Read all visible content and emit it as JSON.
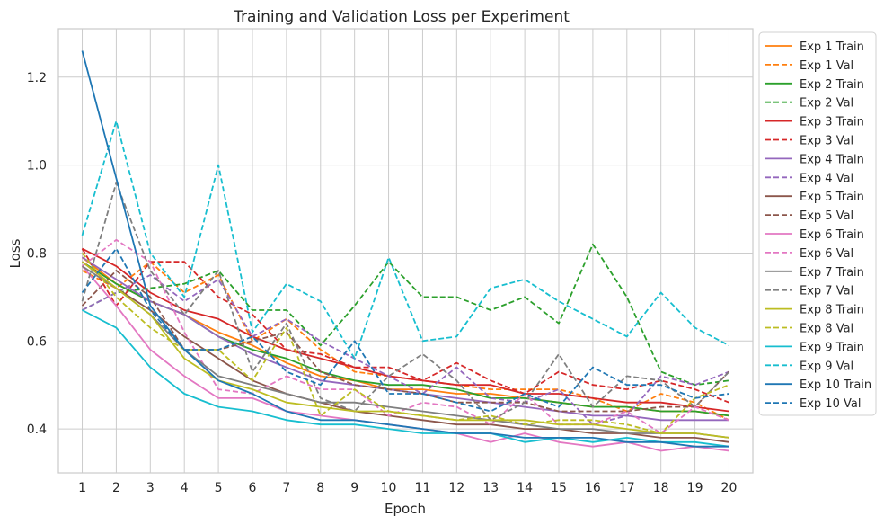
{
  "chart_data": {
    "type": "line",
    "title": "Training and Validation Loss per Experiment",
    "xlabel": "Epoch",
    "ylabel": "Loss",
    "x": [
      1,
      2,
      3,
      4,
      5,
      6,
      7,
      8,
      9,
      10,
      11,
      12,
      13,
      14,
      15,
      16,
      17,
      18,
      19,
      20
    ],
    "xlim": [
      0.3,
      20.7
    ],
    "ylim": [
      0.3,
      1.31
    ],
    "yticks": [
      0.4,
      0.6,
      0.8,
      1.0,
      1.2
    ],
    "ytick_labels": [
      "0.4",
      "0.6",
      "0.8",
      "1.0",
      "1.2"
    ],
    "grid": true,
    "legend_position": "outside right, top",
    "series": [
      {
        "name": "Exp 1 Train",
        "color": "#ff7f0e",
        "style": "solid",
        "values": [
          0.79,
          0.73,
          0.69,
          0.66,
          0.62,
          0.59,
          0.55,
          0.52,
          0.51,
          0.49,
          0.49,
          0.48,
          0.48,
          0.47,
          0.46,
          0.45,
          0.45,
          0.44,
          0.44,
          0.43
        ]
      },
      {
        "name": "Exp 1 Val",
        "color": "#ff7f0e",
        "style": "dashed",
        "values": [
          0.76,
          0.72,
          0.78,
          0.71,
          0.75,
          0.6,
          0.65,
          0.58,
          0.53,
          0.52,
          0.51,
          0.5,
          0.49,
          0.49,
          0.49,
          0.47,
          0.44,
          0.48,
          0.46,
          0.42
        ]
      },
      {
        "name": "Exp 2 Train",
        "color": "#2ca02c",
        "style": "solid",
        "values": [
          0.78,
          0.73,
          0.69,
          0.66,
          0.61,
          0.58,
          0.56,
          0.53,
          0.51,
          0.5,
          0.5,
          0.49,
          0.47,
          0.47,
          0.46,
          0.45,
          0.45,
          0.44,
          0.44,
          0.43
        ]
      },
      {
        "name": "Exp 2 Val",
        "color": "#2ca02c",
        "style": "dashed",
        "values": [
          0.67,
          0.71,
          0.72,
          0.73,
          0.76,
          0.67,
          0.67,
          0.59,
          0.68,
          0.78,
          0.7,
          0.7,
          0.67,
          0.7,
          0.64,
          0.82,
          0.7,
          0.53,
          0.5,
          0.51
        ]
      },
      {
        "name": "Exp 3 Train",
        "color": "#d62728",
        "style": "solid",
        "values": [
          0.81,
          0.77,
          0.71,
          0.67,
          0.65,
          0.61,
          0.58,
          0.56,
          0.54,
          0.52,
          0.51,
          0.5,
          0.5,
          0.48,
          0.48,
          0.47,
          0.46,
          0.46,
          0.45,
          0.44
        ]
      },
      {
        "name": "Exp 3 Val",
        "color": "#d62728",
        "style": "dashed",
        "values": [
          0.81,
          0.68,
          0.78,
          0.78,
          0.7,
          0.66,
          0.58,
          0.57,
          0.54,
          0.54,
          0.51,
          0.55,
          0.51,
          0.48,
          0.53,
          0.5,
          0.49,
          0.51,
          0.49,
          0.46
        ]
      },
      {
        "name": "Exp 4 Train",
        "color": "#9467bd",
        "style": "solid",
        "values": [
          0.79,
          0.74,
          0.69,
          0.66,
          0.61,
          0.57,
          0.54,
          0.51,
          0.5,
          0.49,
          0.48,
          0.47,
          0.46,
          0.45,
          0.44,
          0.43,
          0.43,
          0.42,
          0.42,
          0.42
        ]
      },
      {
        "name": "Exp 4 Val",
        "color": "#9467bd",
        "style": "dashed",
        "values": [
          0.67,
          0.71,
          0.75,
          0.69,
          0.74,
          0.61,
          0.65,
          0.6,
          0.56,
          0.52,
          0.48,
          0.54,
          0.47,
          0.46,
          0.49,
          0.41,
          0.43,
          0.52,
          0.5,
          0.53
        ]
      },
      {
        "name": "Exp 5 Train",
        "color": "#8c564b",
        "style": "solid",
        "values": [
          0.78,
          0.72,
          0.67,
          0.61,
          0.56,
          0.51,
          0.48,
          0.46,
          0.44,
          0.43,
          0.42,
          0.41,
          0.41,
          0.4,
          0.4,
          0.39,
          0.39,
          0.38,
          0.38,
          0.37
        ]
      },
      {
        "name": "Exp 5 Val",
        "color": "#8c564b",
        "style": "dashed",
        "values": [
          0.68,
          0.76,
          0.7,
          0.58,
          0.58,
          0.6,
          0.62,
          0.53,
          0.5,
          0.49,
          0.48,
          0.46,
          0.46,
          0.46,
          0.44,
          0.44,
          0.44,
          0.45,
          0.45,
          0.53
        ]
      },
      {
        "name": "Exp 6 Train",
        "color": "#e377c2",
        "style": "solid",
        "values": [
          0.77,
          0.68,
          0.58,
          0.52,
          0.47,
          0.47,
          0.44,
          0.43,
          0.42,
          0.41,
          0.4,
          0.39,
          0.37,
          0.39,
          0.37,
          0.36,
          0.37,
          0.35,
          0.36,
          0.35
        ]
      },
      {
        "name": "Exp 6 Val",
        "color": "#e377c2",
        "style": "dashed",
        "values": [
          0.77,
          0.83,
          0.78,
          0.62,
          0.49,
          0.48,
          0.52,
          0.49,
          0.49,
          0.43,
          0.46,
          0.45,
          0.41,
          0.48,
          0.41,
          0.41,
          0.44,
          0.39,
          0.45,
          0.42
        ]
      },
      {
        "name": "Exp 7 Train",
        "color": "#7f7f7f",
        "style": "solid",
        "values": [
          0.77,
          0.72,
          0.66,
          0.58,
          0.52,
          0.5,
          0.48,
          0.46,
          0.46,
          0.45,
          0.44,
          0.43,
          0.42,
          0.41,
          0.4,
          0.4,
          0.39,
          0.39,
          0.39,
          0.38
        ]
      },
      {
        "name": "Exp 7 Val",
        "color": "#7f7f7f",
        "style": "dashed",
        "values": [
          0.69,
          0.96,
          0.76,
          0.66,
          0.76,
          0.53,
          0.64,
          0.47,
          0.44,
          0.52,
          0.57,
          0.51,
          0.42,
          0.46,
          0.57,
          0.45,
          0.52,
          0.51,
          0.45,
          0.53
        ]
      },
      {
        "name": "Exp 8 Train",
        "color": "#bcbd22",
        "style": "solid",
        "values": [
          0.78,
          0.72,
          0.66,
          0.56,
          0.51,
          0.49,
          0.46,
          0.45,
          0.44,
          0.44,
          0.43,
          0.42,
          0.42,
          0.42,
          0.41,
          0.41,
          0.4,
          0.39,
          0.39,
          0.38
        ]
      },
      {
        "name": "Exp 8 Val",
        "color": "#bcbd22",
        "style": "dashed",
        "values": [
          0.8,
          0.7,
          0.63,
          0.58,
          0.58,
          0.51,
          0.63,
          0.43,
          0.49,
          0.44,
          0.43,
          0.42,
          0.43,
          0.41,
          0.42,
          0.42,
          0.41,
          0.39,
          0.47,
          0.5
        ]
      },
      {
        "name": "Exp 9 Train",
        "color": "#17becf",
        "style": "solid",
        "values": [
          0.67,
          0.63,
          0.54,
          0.48,
          0.45,
          0.44,
          0.42,
          0.41,
          0.41,
          0.4,
          0.39,
          0.39,
          0.39,
          0.37,
          0.38,
          0.37,
          0.38,
          0.37,
          0.37,
          0.36
        ]
      },
      {
        "name": "Exp 9 Val",
        "color": "#17becf",
        "style": "dashed",
        "values": [
          0.84,
          1.1,
          0.8,
          0.7,
          1.0,
          0.62,
          0.73,
          0.69,
          0.56,
          0.79,
          0.6,
          0.61,
          0.72,
          0.74,
          0.69,
          0.65,
          0.61,
          0.71,
          0.63,
          0.59
        ]
      },
      {
        "name": "Exp 10 Train",
        "color": "#1f77b4",
        "style": "solid",
        "values": [
          1.26,
          0.97,
          0.68,
          0.58,
          0.51,
          0.48,
          0.44,
          0.42,
          0.42,
          0.41,
          0.4,
          0.39,
          0.39,
          0.38,
          0.38,
          0.38,
          0.37,
          0.37,
          0.36,
          0.36
        ]
      },
      {
        "name": "Exp 10 Val",
        "color": "#1f77b4",
        "style": "dashed",
        "values": [
          0.71,
          0.81,
          0.67,
          0.58,
          0.58,
          0.61,
          0.53,
          0.5,
          0.6,
          0.48,
          0.48,
          0.46,
          0.44,
          0.48,
          0.45,
          0.54,
          0.5,
          0.5,
          0.47,
          0.48
        ]
      }
    ]
  }
}
